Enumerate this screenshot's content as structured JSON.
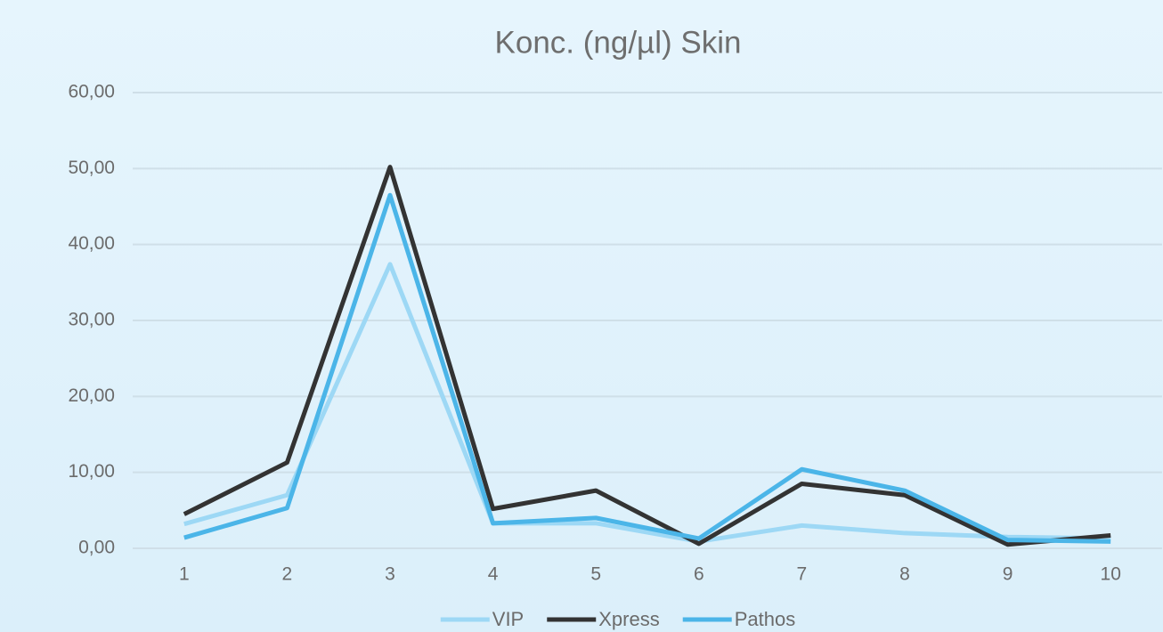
{
  "chart_data": {
    "type": "line",
    "title": "Konc. (ng/µl) Skin",
    "categories": [
      "1",
      "2",
      "3",
      "4",
      "5",
      "6",
      "7",
      "8",
      "9",
      "10"
    ],
    "series": [
      {
        "name": "VIP",
        "color": "#9dd8f5",
        "values": [
          3.2,
          7.0,
          37.4,
          3.3,
          3.3,
          0.9,
          3.0,
          2.0,
          1.5,
          1.3
        ]
      },
      {
        "name": "Xpress",
        "color": "#333333",
        "values": [
          4.5,
          11.3,
          50.2,
          5.2,
          7.6,
          0.6,
          8.5,
          7.0,
          0.5,
          1.7
        ]
      },
      {
        "name": "Pathos",
        "color": "#4bb5e8",
        "values": [
          1.4,
          5.3,
          46.5,
          3.3,
          4.0,
          1.3,
          10.4,
          7.6,
          1.1,
          0.9
        ]
      }
    ],
    "ylim": [
      0,
      60
    ],
    "yticks": [
      {
        "value": 0,
        "label": "0,00"
      },
      {
        "value": 10,
        "label": "10,00"
      },
      {
        "value": 20,
        "label": "20,00"
      },
      {
        "value": 30,
        "label": "30,00"
      },
      {
        "value": 40,
        "label": "40,00"
      },
      {
        "value": 50,
        "label": "50,00"
      },
      {
        "value": 60,
        "label": "60,00"
      }
    ],
    "grid": true,
    "legend": "bottom"
  }
}
